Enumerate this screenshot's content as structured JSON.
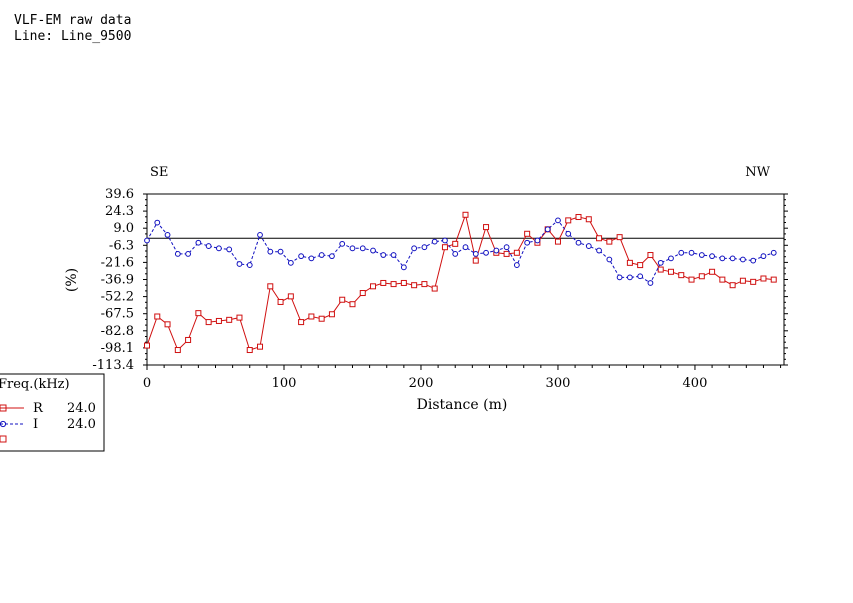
{
  "header": {
    "title": "VLF-EM raw data",
    "line": "Line: Line_9500"
  },
  "directions": {
    "left": "SE",
    "right": "NW"
  },
  "legend": {
    "title": "Freq.(kHz)",
    "rows": [
      {
        "label": "R",
        "freq": "24.0"
      },
      {
        "label": "I",
        "freq": "24.0"
      },
      {
        "label": "",
        "freq": ""
      }
    ]
  },
  "colors": {
    "R": "#d01010",
    "I": "#1010c0",
    "axis": "#000000"
  },
  "chart_data": {
    "type": "line",
    "xlabel": "Distance (m)",
    "ylabel": "(%)",
    "xlim": [
      0,
      465
    ],
    "ylim": [
      -113.4,
      39.6
    ],
    "x_ticks": [
      "0",
      "100",
      "200",
      "300",
      "400"
    ],
    "y_ticks": [
      "39.6",
      "24.3",
      "9.0",
      "-6.3",
      "-21.6",
      "-36.9",
      "-52.2",
      "-67.5",
      "-82.8",
      "-98.1",
      "-113.4"
    ],
    "zero_line": 0,
    "series": [
      {
        "name": "R",
        "marker": "square",
        "style": "solid",
        "points": [
          [
            0,
            -96
          ],
          [
            7.5,
            -70
          ],
          [
            15,
            -77
          ],
          [
            22.5,
            -100
          ],
          [
            30,
            -91
          ],
          [
            37.5,
            -67
          ],
          [
            45,
            -75
          ],
          [
            52.5,
            -74
          ],
          [
            60,
            -73
          ],
          [
            67.5,
            -71
          ],
          [
            75,
            -100
          ],
          [
            82.5,
            -97
          ],
          [
            90,
            -43
          ],
          [
            97.5,
            -57
          ],
          [
            105,
            -52
          ],
          [
            112.5,
            -75
          ],
          [
            120,
            -70
          ],
          [
            127.5,
            -72
          ],
          [
            135,
            -68
          ],
          [
            142.5,
            -55
          ],
          [
            150,
            -59
          ],
          [
            157.5,
            -49
          ],
          [
            165,
            -43
          ],
          [
            172.5,
            -40
          ],
          [
            180,
            -41
          ],
          [
            187.5,
            -40
          ],
          [
            195,
            -42
          ],
          [
            202.5,
            -41
          ],
          [
            210,
            -45
          ],
          [
            217.5,
            -8
          ],
          [
            225,
            -5
          ],
          [
            232.5,
            21
          ],
          [
            240,
            -20
          ],
          [
            247.5,
            10
          ],
          [
            255,
            -13
          ],
          [
            262.5,
            -14
          ],
          [
            270,
            -13
          ],
          [
            277.5,
            4
          ],
          [
            285,
            -4
          ],
          [
            292.5,
            8
          ],
          [
            300,
            -3
          ],
          [
            307.5,
            16
          ],
          [
            315,
            19
          ],
          [
            322.5,
            17
          ],
          [
            330,
            0
          ],
          [
            337.5,
            -3
          ],
          [
            345,
            1
          ],
          [
            352.5,
            -22
          ],
          [
            360,
            -24
          ],
          [
            367.5,
            -15
          ],
          [
            375,
            -28
          ],
          [
            382.5,
            -30
          ],
          [
            390,
            -33
          ],
          [
            397.5,
            -37
          ],
          [
            405,
            -34
          ],
          [
            412.5,
            -30
          ],
          [
            420,
            -37
          ],
          [
            427.5,
            -42
          ],
          [
            435,
            -38
          ],
          [
            442.5,
            -39
          ],
          [
            450,
            -36
          ],
          [
            457.5,
            -37
          ]
        ]
      },
      {
        "name": "I",
        "marker": "circle",
        "style": "dashed",
        "points": [
          [
            0,
            -2
          ],
          [
            7.5,
            14
          ],
          [
            15,
            3
          ],
          [
            22.5,
            -14
          ],
          [
            30,
            -14
          ],
          [
            37.5,
            -4
          ],
          [
            45,
            -7
          ],
          [
            52.5,
            -9
          ],
          [
            60,
            -10
          ],
          [
            67.5,
            -23
          ],
          [
            75,
            -24
          ],
          [
            82.5,
            3
          ],
          [
            90,
            -12
          ],
          [
            97.5,
            -12
          ],
          [
            105,
            -22
          ],
          [
            112.5,
            -16
          ],
          [
            120,
            -18
          ],
          [
            127.5,
            -15
          ],
          [
            135,
            -16
          ],
          [
            142.5,
            -5
          ],
          [
            150,
            -9
          ],
          [
            157.5,
            -9
          ],
          [
            165,
            -11
          ],
          [
            172.5,
            -15
          ],
          [
            180,
            -15
          ],
          [
            187.5,
            -26
          ],
          [
            195,
            -9
          ],
          [
            202.5,
            -8
          ],
          [
            210,
            -3
          ],
          [
            217.5,
            -2
          ],
          [
            225,
            -14
          ],
          [
            232.5,
            -8
          ],
          [
            240,
            -14
          ],
          [
            247.5,
            -13
          ],
          [
            255,
            -11
          ],
          [
            262.5,
            -8
          ],
          [
            270,
            -24
          ],
          [
            277.5,
            -4
          ],
          [
            285,
            -2
          ],
          [
            292.5,
            8
          ],
          [
            300,
            16
          ],
          [
            307.5,
            4
          ],
          [
            315,
            -4
          ],
          [
            322.5,
            -7
          ],
          [
            330,
            -11
          ],
          [
            337.5,
            -19
          ],
          [
            345,
            -35
          ],
          [
            352.5,
            -35
          ],
          [
            360,
            -34
          ],
          [
            367.5,
            -40
          ],
          [
            375,
            -22
          ],
          [
            382.5,
            -18
          ],
          [
            390,
            -13
          ],
          [
            397.5,
            -13
          ],
          [
            405,
            -15
          ],
          [
            412.5,
            -16
          ],
          [
            420,
            -18
          ],
          [
            427.5,
            -18
          ],
          [
            435,
            -19
          ],
          [
            442.5,
            -20
          ],
          [
            450,
            -16
          ],
          [
            457.5,
            -13
          ]
        ]
      }
    ]
  }
}
